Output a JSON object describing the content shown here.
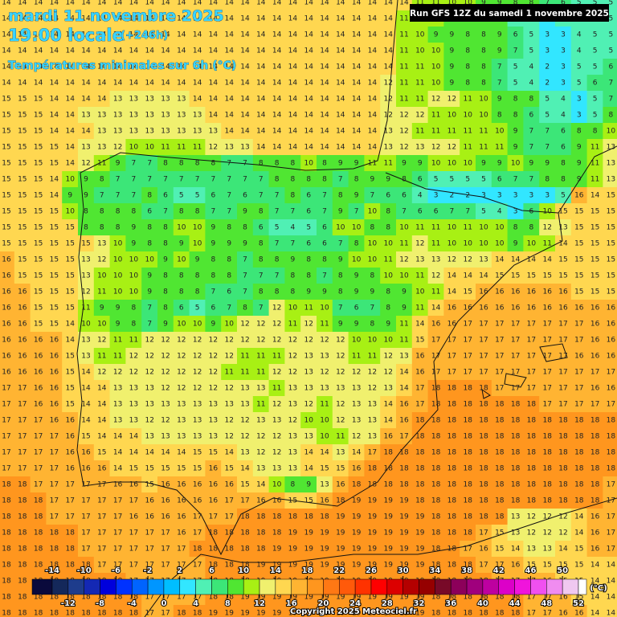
{
  "header": {
    "date": "mardi 11 novembre 2025",
    "time": "19:00 locale",
    "lead": "(+246h)",
    "subtitle": "Températures minimales sur 6h (°C)",
    "run": "Run GFS 12Z du samedi 1 novembre 2025"
  },
  "grid": {
    "rows": [
      [
        14,
        14,
        14,
        14,
        14,
        14,
        14,
        14,
        14,
        14,
        14,
        14,
        14,
        14,
        14,
        14,
        14,
        14,
        14,
        14,
        14,
        14,
        14,
        14,
        14,
        14,
        11,
        11,
        10,
        10,
        9,
        9,
        8,
        8,
        7,
        6,
        5,
        5,
        5
      ],
      [
        14,
        14,
        14,
        14,
        14,
        14,
        14,
        14,
        14,
        14,
        14,
        14,
        14,
        14,
        14,
        14,
        14,
        14,
        14,
        14,
        14,
        14,
        14,
        14,
        14,
        11,
        10,
        10,
        9,
        8,
        8,
        9,
        5,
        4,
        3,
        5,
        5,
        5,
        5
      ],
      [
        14,
        14,
        14,
        14,
        14,
        14,
        14,
        14,
        14,
        14,
        14,
        14,
        14,
        14,
        14,
        14,
        14,
        14,
        14,
        14,
        14,
        14,
        14,
        14,
        14,
        11,
        10,
        9,
        9,
        8,
        8,
        9,
        6,
        5,
        3,
        3,
        4,
        5,
        5
      ],
      [
        14,
        14,
        14,
        14,
        14,
        14,
        14,
        14,
        14,
        14,
        14,
        14,
        14,
        14,
        14,
        14,
        14,
        14,
        14,
        14,
        14,
        14,
        14,
        14,
        14,
        11,
        10,
        10,
        9,
        8,
        8,
        9,
        7,
        5,
        3,
        3,
        4,
        5,
        5
      ],
      [
        14,
        14,
        14,
        14,
        14,
        14,
        14,
        14,
        14,
        14,
        14,
        14,
        14,
        14,
        14,
        14,
        14,
        14,
        14,
        14,
        14,
        14,
        14,
        14,
        14,
        11,
        11,
        10,
        9,
        8,
        8,
        7,
        5,
        4,
        2,
        3,
        5,
        5,
        6
      ],
      [
        14,
        14,
        14,
        14,
        14,
        14,
        14,
        14,
        14,
        14,
        14,
        14,
        14,
        14,
        14,
        14,
        14,
        14,
        14,
        14,
        14,
        14,
        14,
        14,
        12,
        11,
        11,
        10,
        9,
        8,
        8,
        7,
        5,
        4,
        2,
        3,
        5,
        6,
        7
      ],
      [
        15,
        15,
        15,
        14,
        14,
        14,
        14,
        13,
        13,
        13,
        13,
        13,
        14,
        14,
        14,
        14,
        14,
        14,
        14,
        14,
        14,
        14,
        14,
        14,
        12,
        11,
        11,
        12,
        12,
        11,
        10,
        9,
        8,
        8,
        5,
        4,
        3,
        5,
        7
      ],
      [
        15,
        15,
        15,
        14,
        14,
        13,
        13,
        13,
        13,
        13,
        13,
        13,
        13,
        14,
        14,
        14,
        14,
        14,
        14,
        14,
        14,
        14,
        14,
        14,
        12,
        12,
        12,
        11,
        10,
        10,
        10,
        8,
        8,
        6,
        5,
        4,
        3,
        5,
        8
      ],
      [
        15,
        15,
        15,
        14,
        14,
        14,
        13,
        13,
        13,
        13,
        13,
        13,
        13,
        13,
        14,
        14,
        14,
        14,
        14,
        14,
        14,
        14,
        14,
        14,
        13,
        12,
        11,
        11,
        11,
        11,
        11,
        10,
        9,
        7,
        7,
        6,
        8,
        8,
        10
      ],
      [
        15,
        15,
        15,
        15,
        14,
        13,
        13,
        12,
        10,
        10,
        11,
        11,
        11,
        12,
        13,
        13,
        14,
        14,
        14,
        14,
        14,
        14,
        14,
        14,
        13,
        12,
        13,
        12,
        12,
        11,
        11,
        11,
        9,
        7,
        7,
        6,
        9,
        11,
        13
      ],
      [
        15,
        15,
        15,
        15,
        14,
        12,
        11,
        9,
        7,
        7,
        8,
        8,
        8,
        8,
        7,
        7,
        8,
        8,
        8,
        10,
        8,
        9,
        9,
        11,
        11,
        9,
        9,
        10,
        10,
        10,
        9,
        9,
        10,
        9,
        9,
        8,
        9,
        11,
        13
      ],
      [
        15,
        15,
        15,
        14,
        10,
        9,
        8,
        7,
        7,
        7,
        7,
        7,
        7,
        7,
        7,
        7,
        7,
        8,
        8,
        8,
        8,
        7,
        8,
        9,
        9,
        8,
        6,
        5,
        5,
        5,
        5,
        6,
        7,
        7,
        8,
        8,
        9,
        11,
        13
      ],
      [
        15,
        15,
        15,
        14,
        9,
        9,
        7,
        7,
        7,
        8,
        6,
        5,
        5,
        6,
        7,
        6,
        7,
        7,
        8,
        6,
        7,
        8,
        9,
        7,
        6,
        6,
        4,
        3,
        2,
        2,
        3,
        3,
        3,
        3,
        3,
        5,
        16,
        14,
        15
      ],
      [
        15,
        15,
        15,
        15,
        10,
        8,
        8,
        8,
        8,
        6,
        7,
        8,
        8,
        7,
        7,
        9,
        8,
        7,
        7,
        6,
        7,
        9,
        7,
        10,
        8,
        7,
        6,
        6,
        7,
        7,
        5,
        4,
        3,
        6,
        10,
        15,
        15,
        15,
        15
      ],
      [
        15,
        15,
        15,
        15,
        15,
        8,
        8,
        8,
        9,
        8,
        8,
        10,
        10,
        9,
        8,
        8,
        6,
        5,
        4,
        5,
        6,
        10,
        10,
        8,
        8,
        10,
        11,
        11,
        10,
        11,
        10,
        10,
        8,
        8,
        12,
        13,
        15,
        15,
        15
      ],
      [
        15,
        15,
        15,
        15,
        15,
        15,
        13,
        10,
        9,
        8,
        8,
        9,
        10,
        9,
        9,
        9,
        8,
        7,
        7,
        6,
        6,
        7,
        8,
        10,
        10,
        11,
        12,
        11,
        10,
        10,
        10,
        10,
        9,
        10,
        11,
        14,
        15,
        15,
        15
      ],
      [
        16,
        15,
        15,
        15,
        15,
        13,
        12,
        10,
        10,
        10,
        9,
        10,
        9,
        8,
        8,
        7,
        8,
        8,
        9,
        8,
        8,
        9,
        10,
        10,
        11,
        12,
        13,
        13,
        12,
        12,
        13,
        14,
        14,
        14,
        14,
        15,
        15,
        15,
        15
      ],
      [
        16,
        15,
        15,
        15,
        15,
        13,
        10,
        10,
        10,
        9,
        8,
        8,
        8,
        8,
        8,
        7,
        7,
        7,
        8,
        8,
        7,
        8,
        9,
        8,
        10,
        10,
        11,
        12,
        14,
        14,
        14,
        15,
        15,
        15,
        15,
        15,
        15,
        15,
        15
      ],
      [
        16,
        16,
        15,
        15,
        15,
        12,
        11,
        10,
        10,
        9,
        8,
        8,
        8,
        7,
        6,
        7,
        8,
        8,
        8,
        9,
        9,
        8,
        9,
        9,
        8,
        9,
        10,
        11,
        14,
        15,
        16,
        16,
        16,
        16,
        16,
        16,
        15,
        15,
        15
      ],
      [
        16,
        16,
        15,
        15,
        15,
        11,
        9,
        9,
        8,
        7,
        8,
        6,
        5,
        6,
        7,
        8,
        7,
        12,
        10,
        11,
        10,
        7,
        6,
        7,
        8,
        9,
        11,
        14,
        16,
        16,
        16,
        16,
        16,
        16,
        16,
        16,
        16,
        16,
        16
      ],
      [
        16,
        16,
        15,
        15,
        14,
        10,
        10,
        9,
        8,
        7,
        9,
        10,
        10,
        9,
        10,
        12,
        12,
        12,
        11,
        12,
        11,
        9,
        9,
        8,
        9,
        11,
        14,
        16,
        16,
        17,
        17,
        17,
        17,
        17,
        17,
        17,
        17,
        16,
        16
      ],
      [
        16,
        16,
        16,
        16,
        14,
        13,
        12,
        11,
        11,
        12,
        12,
        12,
        12,
        12,
        12,
        12,
        12,
        12,
        12,
        12,
        12,
        12,
        10,
        10,
        10,
        11,
        15,
        17,
        17,
        17,
        17,
        17,
        17,
        17,
        17,
        17,
        17,
        16,
        16
      ],
      [
        16,
        16,
        16,
        16,
        15,
        13,
        11,
        11,
        12,
        12,
        12,
        12,
        12,
        12,
        12,
        11,
        11,
        11,
        12,
        13,
        13,
        12,
        11,
        11,
        12,
        13,
        16,
        17,
        17,
        17,
        17,
        17,
        17,
        17,
        17,
        17,
        16,
        16,
        16
      ],
      [
        16,
        16,
        16,
        16,
        15,
        14,
        12,
        12,
        12,
        12,
        12,
        12,
        12,
        12,
        11,
        11,
        11,
        12,
        12,
        13,
        12,
        12,
        12,
        12,
        12,
        14,
        16,
        17,
        17,
        17,
        17,
        17,
        17,
        17,
        17,
        17,
        17,
        17,
        17
      ],
      [
        17,
        17,
        16,
        16,
        15,
        14,
        14,
        13,
        13,
        13,
        12,
        12,
        12,
        12,
        12,
        13,
        13,
        11,
        13,
        13,
        13,
        13,
        13,
        12,
        13,
        14,
        17,
        18,
        18,
        18,
        18,
        17,
        17,
        17,
        17,
        17,
        17,
        16,
        16
      ],
      [
        17,
        17,
        16,
        16,
        15,
        14,
        14,
        13,
        13,
        13,
        13,
        13,
        13,
        13,
        13,
        13,
        11,
        12,
        13,
        12,
        11,
        12,
        13,
        13,
        14,
        16,
        17,
        18,
        18,
        18,
        18,
        18,
        18,
        18,
        17,
        17,
        17,
        17,
        17
      ],
      [
        17,
        17,
        17,
        16,
        16,
        14,
        14,
        13,
        13,
        12,
        12,
        13,
        13,
        13,
        12,
        12,
        13,
        13,
        12,
        10,
        10,
        12,
        13,
        13,
        14,
        16,
        18,
        18,
        18,
        18,
        18,
        18,
        18,
        18,
        18,
        18,
        18,
        18,
        18
      ],
      [
        17,
        17,
        17,
        17,
        16,
        15,
        14,
        14,
        14,
        13,
        13,
        13,
        13,
        13,
        12,
        12,
        12,
        12,
        13,
        13,
        10,
        11,
        12,
        13,
        16,
        17,
        18,
        18,
        18,
        18,
        18,
        18,
        18,
        18,
        18,
        18,
        18,
        18,
        18
      ],
      [
        17,
        17,
        17,
        17,
        16,
        16,
        15,
        14,
        14,
        14,
        14,
        14,
        15,
        15,
        14,
        13,
        12,
        12,
        13,
        14,
        14,
        13,
        14,
        17,
        18,
        18,
        18,
        18,
        18,
        18,
        18,
        18,
        18,
        18,
        18,
        18,
        18,
        18,
        18
      ],
      [
        17,
        17,
        17,
        17,
        16,
        16,
        16,
        14,
        15,
        15,
        15,
        15,
        15,
        16,
        15,
        14,
        13,
        13,
        13,
        14,
        15,
        15,
        16,
        18,
        18,
        18,
        18,
        18,
        18,
        18,
        18,
        18,
        18,
        18,
        18,
        18,
        18,
        18,
        18
      ],
      [
        18,
        18,
        17,
        17,
        17,
        17,
        17,
        16,
        16,
        15,
        16,
        16,
        16,
        16,
        16,
        15,
        14,
        10,
        8,
        9,
        13,
        16,
        18,
        18,
        18,
        18,
        18,
        18,
        18,
        18,
        18,
        18,
        18,
        18,
        18,
        18,
        18,
        18,
        17
      ],
      [
        18,
        18,
        18,
        17,
        17,
        17,
        17,
        17,
        17,
        16,
        16,
        16,
        16,
        16,
        17,
        17,
        16,
        16,
        15,
        15,
        16,
        18,
        19,
        19,
        19,
        19,
        18,
        18,
        18,
        18,
        18,
        18,
        18,
        18,
        18,
        18,
        18,
        18,
        17
      ],
      [
        18,
        18,
        18,
        17,
        17,
        17,
        17,
        17,
        16,
        16,
        16,
        16,
        17,
        17,
        17,
        18,
        18,
        18,
        18,
        18,
        18,
        19,
        19,
        19,
        19,
        19,
        19,
        18,
        18,
        18,
        18,
        18,
        13,
        12,
        12,
        12,
        14,
        16,
        17
      ],
      [
        18,
        18,
        18,
        18,
        18,
        17,
        17,
        17,
        17,
        17,
        17,
        16,
        17,
        18,
        18,
        18,
        18,
        18,
        19,
        19,
        19,
        19,
        19,
        19,
        19,
        19,
        19,
        18,
        18,
        18,
        17,
        15,
        13,
        12,
        12,
        12,
        14,
        16,
        17
      ],
      [
        18,
        18,
        18,
        18,
        18,
        17,
        17,
        17,
        17,
        17,
        17,
        17,
        18,
        18,
        18,
        18,
        18,
        19,
        19,
        19,
        19,
        19,
        19,
        19,
        19,
        19,
        19,
        18,
        18,
        17,
        16,
        15,
        14,
        13,
        13,
        14,
        15,
        16,
        17
      ],
      [
        18,
        18,
        18,
        18,
        18,
        18,
        17,
        17,
        17,
        17,
        17,
        17,
        17,
        18,
        18,
        18,
        19,
        19,
        19,
        19,
        19,
        19,
        19,
        19,
        19,
        19,
        19,
        18,
        18,
        18,
        17,
        17,
        16,
        15,
        15,
        15,
        15,
        14,
        14
      ],
      [
        18,
        18,
        18,
        18,
        18,
        18,
        18,
        18,
        17,
        17,
        17,
        17,
        17,
        18,
        18,
        18,
        19,
        19,
        19,
        19,
        19,
        19,
        19,
        19,
        19,
        19,
        19,
        18,
        18,
        18,
        18,
        17,
        17,
        17,
        16,
        15,
        15,
        14,
        14
      ],
      [
        18,
        18,
        18,
        18,
        18,
        18,
        18,
        18,
        18,
        17,
        17,
        17,
        17,
        18,
        18,
        19,
        19,
        19,
        19,
        19,
        19,
        19,
        19,
        19,
        19,
        19,
        19,
        18,
        18,
        18,
        18,
        18,
        18,
        17,
        17,
        16,
        15,
        14,
        14
      ],
      [
        18,
        18,
        18,
        18,
        18,
        18,
        18,
        18,
        18,
        17,
        17,
        18,
        18,
        19,
        19,
        19,
        19,
        19,
        19,
        19,
        19,
        19,
        19,
        19,
        19,
        19,
        19,
        18,
        18,
        18,
        18,
        18,
        18,
        17,
        17,
        16,
        16,
        14,
        14
      ]
    ]
  },
  "colorbar": {
    "upper_labels": [
      -14,
      -10,
      -6,
      -2,
      2,
      6,
      10,
      14,
      18,
      22,
      26,
      30,
      34,
      38,
      42,
      46,
      50
    ],
    "lower_labels": [
      -12,
      -8,
      -4,
      0,
      4,
      8,
      12,
      16,
      20,
      24,
      28,
      32,
      36,
      40,
      44,
      48,
      52
    ],
    "colors": [
      "#0a0a3c",
      "#14285a",
      "#1e3c8c",
      "#1428b4",
      "#0000dc",
      "#0032ff",
      "#0064ff",
      "#0096ff",
      "#00beff",
      "#32e6ff",
      "#50f0b4",
      "#3ce678",
      "#50e632",
      "#a8f014",
      "#f0f06e",
      "#ffd750",
      "#ffb432",
      "#ff961e",
      "#ff7814",
      "#ff5a0a",
      "#ff3200",
      "#ff0000",
      "#dc0000",
      "#b40000",
      "#960000",
      "#780a28",
      "#8c005a",
      "#a0007d",
      "#be00a0",
      "#dc00c8",
      "#f014dc",
      "#f050f0",
      "#f08cf0",
      "#f0c8f0",
      "#ffffff"
    ],
    "unit": "(°C)"
  },
  "footer": {
    "copyright": "Copyright 2025 Meteociel.fr"
  }
}
